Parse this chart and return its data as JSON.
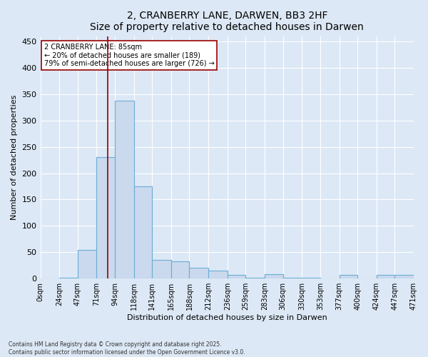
{
  "title": "2, CRANBERRY LANE, DARWEN, BB3 2HF",
  "subtitle": "Size of property relative to detached houses in Darwen",
  "xlabel": "Distribution of detached houses by size in Darwen",
  "ylabel": "Number of detached properties",
  "bin_edges": [
    0,
    24,
    47,
    71,
    94,
    118,
    141,
    165,
    188,
    212,
    236,
    259,
    283,
    306,
    330,
    353,
    377,
    400,
    424,
    447,
    471
  ],
  "bar_heights": [
    0,
    2,
    55,
    230,
    338,
    175,
    35,
    33,
    20,
    15,
    7,
    2,
    8,
    2,
    2,
    0,
    7,
    0,
    7,
    7
  ],
  "bar_color": "#cad9ed",
  "bar_edge_color": "#6badd6",
  "property_size": 85,
  "vline_color": "#990000",
  "annotation_text": "2 CRANBERRY LANE: 85sqm\n← 20% of detached houses are smaller (189)\n79% of semi-detached houses are larger (726) →",
  "annotation_box_color": "white",
  "annotation_box_edge_color": "#990000",
  "ylim": [
    0,
    460
  ],
  "yticks": [
    0,
    50,
    100,
    150,
    200,
    250,
    300,
    350,
    400,
    450
  ],
  "background_color": "#dce8f5",
  "footer_line1": "Contains HM Land Registry data © Crown copyright and database right 2025.",
  "footer_line2": "Contains public sector information licensed under the Open Government Licence v3.0.",
  "title_fontsize": 10,
  "tick_fontsize": 7,
  "ylabel_fontsize": 8,
  "xlabel_fontsize": 8,
  "annotation_fontsize": 7
}
